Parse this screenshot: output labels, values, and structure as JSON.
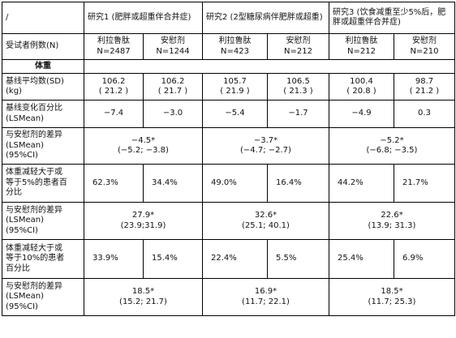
{
  "table": {
    "corner": "/",
    "studies": [
      "研究1 (肥胖或超重伴合并症)",
      "研究2 (2型糖尿病伴肥胖或超重)",
      "研究3 (饮食减重至少5%后，肥胖或超重伴合并症)"
    ],
    "n_row": {
      "label": "受试者例数(N)",
      "cells": [
        {
          "arm": "利拉鲁肽",
          "n": "N=2487"
        },
        {
          "arm": "安慰剂",
          "n": "N=1244"
        },
        {
          "arm": "利拉鲁肽",
          "n": "N=423"
        },
        {
          "arm": "安慰剂",
          "n": "N=212"
        },
        {
          "arm": "利拉鲁肽",
          "n": "N=212"
        },
        {
          "arm": "安慰剂",
          "n": "N=210"
        }
      ]
    },
    "section_title": "体重",
    "baseline": {
      "label_1": "基线平均数(SD)",
      "label_2": "(kg)",
      "cells": [
        {
          "mean": "106.2",
          "sd": "( 21.2 )"
        },
        {
          "mean": "106.2",
          "sd": "( 21.7 )"
        },
        {
          "mean": "105.7",
          "sd": "( 21.9 )"
        },
        {
          "mean": "106.5",
          "sd": "( 21.3 )"
        },
        {
          "mean": "100.4",
          "sd": "( 20.8 )"
        },
        {
          "mean": "98.7",
          "sd": "( 21.2 )"
        }
      ]
    },
    "change": {
      "label_1": "基线变化百分比",
      "label_2": "(LSMean)",
      "values": [
        "−7.4",
        "−3.0",
        "−5.4",
        "−1.7",
        "−4.9",
        "0.3"
      ]
    },
    "diff1": {
      "label_1": "与安慰剂的差异",
      "label_2": "(LSMean)",
      "label_3": "(95%CI)",
      "cells": [
        {
          "est": "−4.5*",
          "ci": "(−5.2; −3.8)"
        },
        {
          "est": "−3.7*",
          "ci": "(−4.7; −2.7)"
        },
        {
          "est": "−5.2*",
          "ci": "(−6.8; −3.5)"
        }
      ]
    },
    "pct5": {
      "label_1": "体重减轻大于或",
      "label_2": "等于5%的患者百",
      "label_3": "分比",
      "values": [
        "62.3%",
        "34.4%",
        "49.0%",
        "16.4%",
        "44.2%",
        "21.7%"
      ]
    },
    "diff2": {
      "label_1": "与安慰剂的差异",
      "label_2": "(LSMean)",
      "label_3": "(95%CI)",
      "cells": [
        {
          "est": "27.9*",
          "ci": "(23.9;31.9)"
        },
        {
          "est": "32.6*",
          "ci": "(25.1; 40.1)"
        },
        {
          "est": "22.6*",
          "ci": "(13.9; 31.3)"
        }
      ]
    },
    "pct10": {
      "label_1": "体重减轻大于或",
      "label_2": "等于10%的患者",
      "label_3": "百分比",
      "values": [
        "33.9%",
        "15.4%",
        "22.4%",
        "5.5%",
        "25.4%",
        "6.9%"
      ]
    },
    "diff3": {
      "label_1": "与安慰剂的差异",
      "label_2": "(LSMean)",
      "label_3": "(95%CI)",
      "cells": [
        {
          "est": "18.5*",
          "ci": "(15.2; 21.7)"
        },
        {
          "est": "16.9*",
          "ci": "(11.7; 22.1)"
        },
        {
          "est": "18.5*",
          "ci": "(11.7; 25.3)"
        }
      ]
    }
  }
}
